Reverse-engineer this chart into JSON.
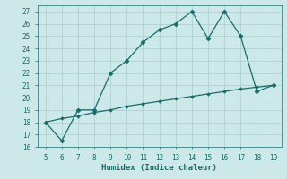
{
  "xlabel": "Humidex (Indice chaleur)",
  "x": [
    5,
    6,
    7,
    8,
    9,
    10,
    11,
    12,
    13,
    14,
    15,
    16,
    17,
    18,
    19
  ],
  "y_curve": [
    18,
    16.5,
    19,
    19,
    22,
    23,
    24.5,
    25.5,
    26,
    27,
    24.8,
    27,
    25,
    20.5,
    21
  ],
  "y_line": [
    18.0,
    18.3,
    18.5,
    18.8,
    19.0,
    19.3,
    19.5,
    19.7,
    19.9,
    20.1,
    20.3,
    20.5,
    20.7,
    20.85,
    21.0
  ],
  "curve_color": "#1a6b6b",
  "bg_color": "#cce8e8",
  "grid_color": "#aacece",
  "text_color": "#1a6b6b",
  "ylim": [
    16,
    27.5
  ],
  "xlim": [
    4.5,
    19.5
  ],
  "yticks": [
    16,
    17,
    18,
    19,
    20,
    21,
    22,
    23,
    24,
    25,
    26,
    27
  ],
  "xticks": [
    5,
    6,
    7,
    8,
    9,
    10,
    11,
    12,
    13,
    14,
    15,
    16,
    17,
    18,
    19
  ]
}
